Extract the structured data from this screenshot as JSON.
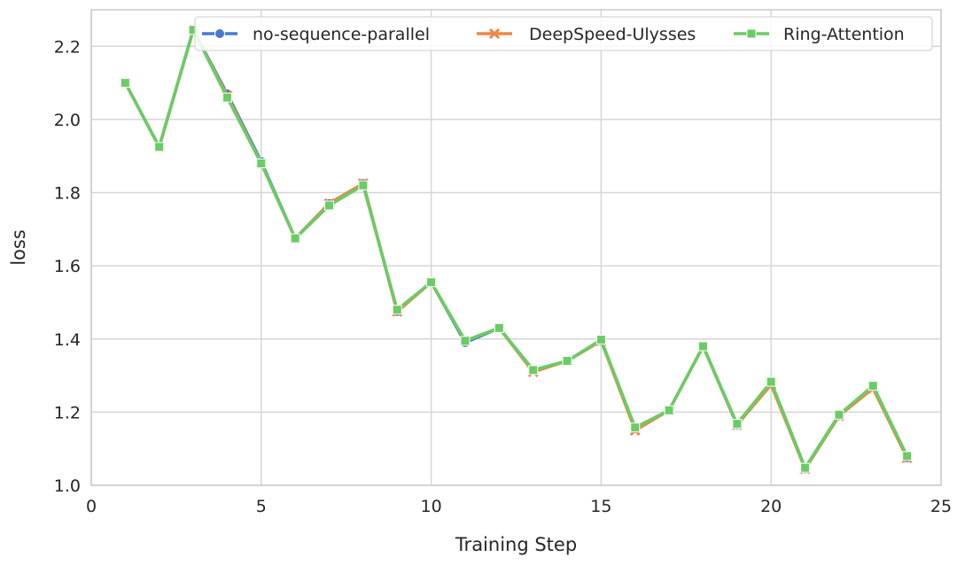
{
  "chart_data": {
    "type": "line",
    "title": "",
    "xlabel": "Training Step",
    "ylabel": "loss",
    "xlim": [
      0,
      25
    ],
    "ylim": [
      1.0,
      2.3
    ],
    "xticks": [
      0,
      5,
      10,
      15,
      20,
      25
    ],
    "yticks": [
      1.0,
      1.2,
      1.4,
      1.6,
      1.8,
      2.0,
      2.2
    ],
    "xtick_labels": [
      "0",
      "5",
      "10",
      "15",
      "20",
      "25"
    ],
    "ytick_labels": [
      "1.0",
      "1.2",
      "1.4",
      "1.6",
      "1.8",
      "2.0",
      "2.2"
    ],
    "grid": true,
    "legend_position": "top-right",
    "x": [
      1,
      2,
      3,
      4,
      5,
      6,
      7,
      8,
      9,
      10,
      11,
      12,
      13,
      14,
      15,
      16,
      17,
      18,
      19,
      20,
      21,
      22,
      23,
      24
    ],
    "series": [
      {
        "name": "no-sequence-parallel",
        "color": "#4878d0",
        "marker": "circle",
        "values": [
          2.1,
          1.925,
          2.245,
          2.07,
          1.885,
          1.675,
          1.77,
          1.825,
          1.475,
          1.555,
          1.39,
          1.43,
          1.315,
          1.34,
          1.395,
          1.155,
          1.205,
          1.38,
          1.165,
          1.28,
          1.045,
          1.19,
          1.27,
          1.075
        ]
      },
      {
        "name": "DeepSpeed-Ulysses",
        "color": "#ee854a",
        "marker": "x",
        "values": [
          2.1,
          1.925,
          2.245,
          2.065,
          1.88,
          1.675,
          1.77,
          1.825,
          1.475,
          1.555,
          1.395,
          1.43,
          1.31,
          1.34,
          1.395,
          1.15,
          1.205,
          1.38,
          1.165,
          1.275,
          1.045,
          1.19,
          1.265,
          1.075
        ]
      },
      {
        "name": "Ring-Attention",
        "color": "#6acc64",
        "marker": "square",
        "values": [
          2.1,
          1.925,
          2.245,
          2.06,
          1.88,
          1.675,
          1.765,
          1.82,
          1.48,
          1.555,
          1.395,
          1.43,
          1.315,
          1.34,
          1.398,
          1.158,
          1.205,
          1.38,
          1.168,
          1.283,
          1.048,
          1.193,
          1.272,
          1.08
        ]
      }
    ]
  }
}
